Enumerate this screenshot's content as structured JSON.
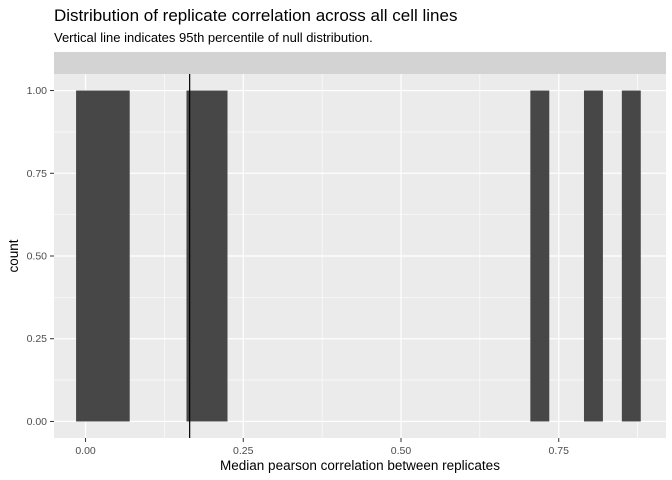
{
  "chart_data": {
    "type": "bar",
    "title": "Distribution of replicate correlation across all cell lines",
    "subtitle": "Vertical line indicates 95th percentile of null distribution.",
    "xlabel": "Median pearson correlation between replicates",
    "ylabel": "count",
    "xlim": [
      -0.05,
      0.92
    ],
    "ylim": [
      -0.05,
      1.05
    ],
    "x_major_ticks": [
      0.0,
      0.25,
      0.5,
      0.75
    ],
    "x_tick_labels": [
      "0.00",
      "0.25",
      "0.50",
      "0.75"
    ],
    "y_major_ticks": [
      0.0,
      0.25,
      0.5,
      0.75,
      1.0
    ],
    "y_tick_labels": [
      "0.00",
      "0.25",
      "0.50",
      "0.75",
      "1.00"
    ],
    "bars": [
      {
        "xmin": -0.015,
        "xmax": 0.07,
        "count": 1
      },
      {
        "xmin": 0.16,
        "xmax": 0.225,
        "count": 1
      },
      {
        "xmin": 0.705,
        "xmax": 0.735,
        "count": 1
      },
      {
        "xmin": 0.79,
        "xmax": 0.82,
        "count": 1
      },
      {
        "xmin": 0.85,
        "xmax": 0.88,
        "count": 1
      }
    ],
    "vline_x": 0.165,
    "grid": true,
    "legend": "none",
    "colors": {
      "bar_fill": "#474747",
      "panel_background": "#ebebeb",
      "strip_background": "#d3d3d3",
      "grid_line": "#ffffff",
      "vline": "#000000"
    }
  }
}
